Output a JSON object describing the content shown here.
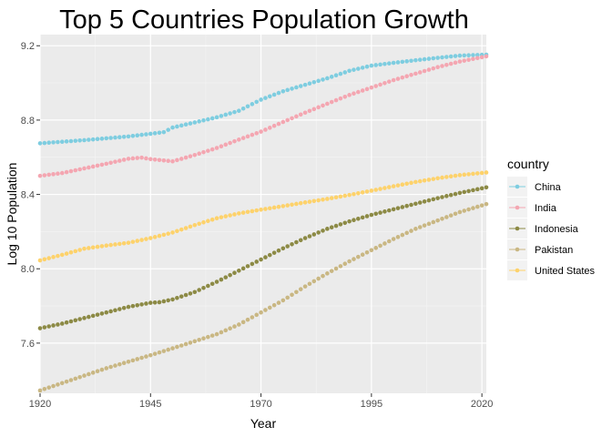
{
  "chart_data": {
    "type": "scatter",
    "title": "Top 5 Countries Population Growth",
    "xlabel": "Year",
    "ylabel": "Log 10 Population",
    "xlim": [
      1920,
      2021
    ],
    "ylim": [
      7.33,
      9.26
    ],
    "x_ticks": [
      1920,
      1945,
      1970,
      1995,
      2020
    ],
    "y_ticks": [
      7.6,
      8.0,
      8.4,
      8.8,
      9.2
    ],
    "x_tick_labels": [
      "1920",
      "1945",
      "1970",
      "1995",
      "2020"
    ],
    "y_tick_labels": [
      "7.6",
      "8.0",
      "8.4",
      "8.8",
      "9.2"
    ],
    "grid": true,
    "legend": {
      "title": "country",
      "placement": "right"
    },
    "year_step": 1,
    "series": [
      {
        "name": "China",
        "color": "#7ecde0",
        "knots": [
          [
            1920,
            8.675
          ],
          [
            1930,
            8.692
          ],
          [
            1940,
            8.712
          ],
          [
            1948,
            8.735
          ],
          [
            1950,
            8.76
          ],
          [
            1960,
            8.815
          ],
          [
            1965,
            8.85
          ],
          [
            1970,
            8.91
          ],
          [
            1975,
            8.955
          ],
          [
            1980,
            8.99
          ],
          [
            1985,
            9.025
          ],
          [
            1990,
            9.065
          ],
          [
            1995,
            9.093
          ],
          [
            2000,
            9.108
          ],
          [
            2005,
            9.122
          ],
          [
            2010,
            9.135
          ],
          [
            2015,
            9.147
          ],
          [
            2021,
            9.152
          ]
        ]
      },
      {
        "name": "India",
        "color": "#f4a6b1",
        "knots": [
          [
            1920,
            8.5
          ],
          [
            1925,
            8.515
          ],
          [
            1930,
            8.54
          ],
          [
            1935,
            8.565
          ],
          [
            1940,
            8.592
          ],
          [
            1943,
            8.598
          ],
          [
            1945,
            8.59
          ],
          [
            1950,
            8.578
          ],
          [
            1955,
            8.612
          ],
          [
            1960,
            8.65
          ],
          [
            1965,
            8.695
          ],
          [
            1970,
            8.738
          ],
          [
            1975,
            8.79
          ],
          [
            1980,
            8.84
          ],
          [
            1985,
            8.888
          ],
          [
            1990,
            8.935
          ],
          [
            1995,
            8.975
          ],
          [
            2000,
            9.015
          ],
          [
            2005,
            9.05
          ],
          [
            2010,
            9.085
          ],
          [
            2015,
            9.115
          ],
          [
            2021,
            9.143
          ]
        ]
      },
      {
        "name": "Indonesia",
        "color": "#8c8a45",
        "knots": [
          [
            1920,
            7.68
          ],
          [
            1925,
            7.705
          ],
          [
            1930,
            7.735
          ],
          [
            1935,
            7.765
          ],
          [
            1940,
            7.795
          ],
          [
            1945,
            7.817
          ],
          [
            1947,
            7.82
          ],
          [
            1950,
            7.835
          ],
          [
            1955,
            7.875
          ],
          [
            1960,
            7.93
          ],
          [
            1965,
            7.99
          ],
          [
            1970,
            8.05
          ],
          [
            1975,
            8.11
          ],
          [
            1980,
            8.165
          ],
          [
            1985,
            8.215
          ],
          [
            1990,
            8.255
          ],
          [
            1995,
            8.29
          ],
          [
            2000,
            8.32
          ],
          [
            2005,
            8.35
          ],
          [
            2010,
            8.38
          ],
          [
            2015,
            8.408
          ],
          [
            2021,
            8.438
          ]
        ]
      },
      {
        "name": "Pakistan",
        "color": "#c9b783",
        "knots": [
          [
            1920,
            7.345
          ],
          [
            1925,
            7.385
          ],
          [
            1930,
            7.425
          ],
          [
            1935,
            7.465
          ],
          [
            1940,
            7.5
          ],
          [
            1945,
            7.535
          ],
          [
            1950,
            7.572
          ],
          [
            1955,
            7.61
          ],
          [
            1960,
            7.648
          ],
          [
            1965,
            7.7
          ],
          [
            1970,
            7.765
          ],
          [
            1975,
            7.83
          ],
          [
            1980,
            7.905
          ],
          [
            1985,
            7.975
          ],
          [
            1990,
            8.04
          ],
          [
            1995,
            8.1
          ],
          [
            2000,
            8.16
          ],
          [
            2005,
            8.215
          ],
          [
            2010,
            8.26
          ],
          [
            2015,
            8.305
          ],
          [
            2021,
            8.348
          ]
        ]
      },
      {
        "name": "United States",
        "color": "#fdd26b",
        "knots": [
          [
            1920,
            8.045
          ],
          [
            1925,
            8.075
          ],
          [
            1930,
            8.108
          ],
          [
            1935,
            8.125
          ],
          [
            1940,
            8.14
          ],
          [
            1945,
            8.165
          ],
          [
            1950,
            8.195
          ],
          [
            1955,
            8.235
          ],
          [
            1960,
            8.272
          ],
          [
            1965,
            8.298
          ],
          [
            1970,
            8.318
          ],
          [
            1975,
            8.337
          ],
          [
            1980,
            8.357
          ],
          [
            1985,
            8.376
          ],
          [
            1990,
            8.397
          ],
          [
            1995,
            8.42
          ],
          [
            2000,
            8.444
          ],
          [
            2005,
            8.467
          ],
          [
            2010,
            8.487
          ],
          [
            2015,
            8.504
          ],
          [
            2021,
            8.518
          ]
        ]
      }
    ]
  }
}
